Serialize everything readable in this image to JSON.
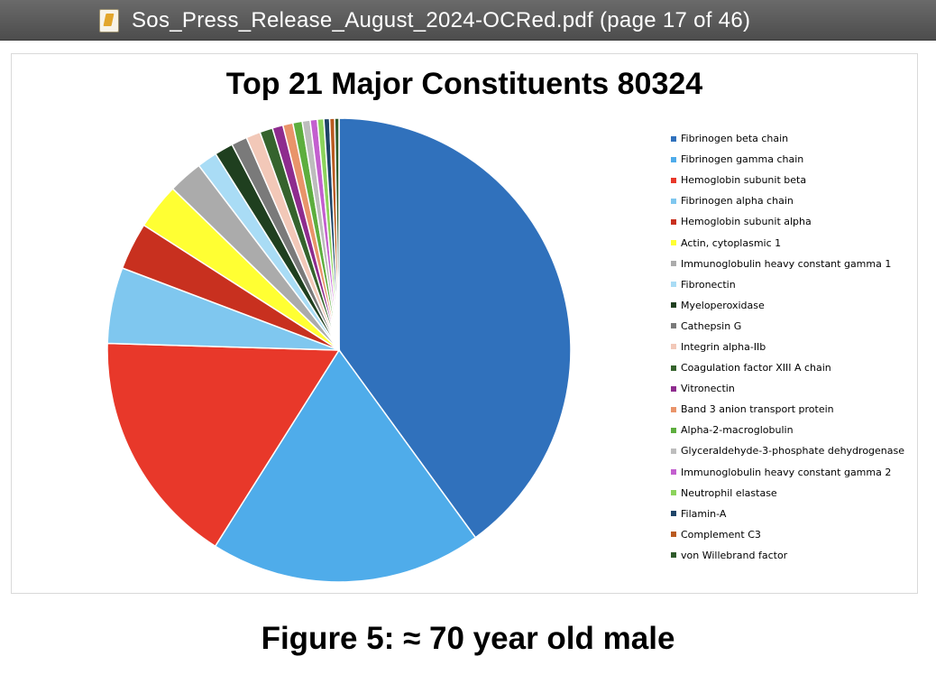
{
  "window": {
    "title": "Sos_Press_Release_August_2024-OCRed.pdf (page 17 of 46)",
    "icon": "pdf-document-icon"
  },
  "caption": "Figure 5: ≈ 70 year old male",
  "chart_data": {
    "type": "pie",
    "title": "Top 21 Major Constituents 80324",
    "legend_position": "right",
    "series": [
      {
        "name": "Fibrinogen beta chain",
        "value": 40.0,
        "color": "#3071BC"
      },
      {
        "name": "Fibrinogen gamma chain",
        "value": 19.0,
        "color": "#4FACEA"
      },
      {
        "name": "Hemoglobin subunit beta",
        "value": 16.5,
        "color": "#E8382A"
      },
      {
        "name": "Fibrinogen alpha chain",
        "value": 5.3,
        "color": "#7FC7EF"
      },
      {
        "name": "Hemoglobin subunit alpha",
        "value": 3.3,
        "color": "#C8301F"
      },
      {
        "name": "Actin, cytoplasmic 1",
        "value": 3.2,
        "color": "#FFFF33"
      },
      {
        "name": "Immunoglobulin heavy constant gamma 1",
        "value": 2.4,
        "color": "#ABABAB"
      },
      {
        "name": "Fibronectin",
        "value": 1.4,
        "color": "#A9DCF5"
      },
      {
        "name": "Myeloperoxidase",
        "value": 1.3,
        "color": "#1F3F1F"
      },
      {
        "name": "Cathepsin G",
        "value": 1.1,
        "color": "#7A7A7A"
      },
      {
        "name": "Integrin alpha-IIb",
        "value": 1.0,
        "color": "#F2C8B8"
      },
      {
        "name": "Coagulation factor XIII A chain",
        "value": 0.9,
        "color": "#35632D"
      },
      {
        "name": "Vitronectin",
        "value": 0.75,
        "color": "#8E2C8E"
      },
      {
        "name": "Band 3 anion transport protein",
        "value": 0.7,
        "color": "#E9946A"
      },
      {
        "name": "Alpha-2-macroglobulin",
        "value": 0.65,
        "color": "#5DAE3E"
      },
      {
        "name": "Glyceraldehyde-3-phosphate dehydrogenase",
        "value": 0.55,
        "color": "#BDBDBD"
      },
      {
        "name": "Immunoglobulin heavy constant gamma 2",
        "value": 0.5,
        "color": "#C35FCF"
      },
      {
        "name": "Neutrophil elastase",
        "value": 0.45,
        "color": "#8CD35C"
      },
      {
        "name": "Filamin-A",
        "value": 0.4,
        "color": "#1E4467"
      },
      {
        "name": "Complement C3",
        "value": 0.35,
        "color": "#B95A20"
      },
      {
        "name": "von Willebrand factor",
        "value": 0.3,
        "color": "#2E5A2A"
      }
    ]
  }
}
